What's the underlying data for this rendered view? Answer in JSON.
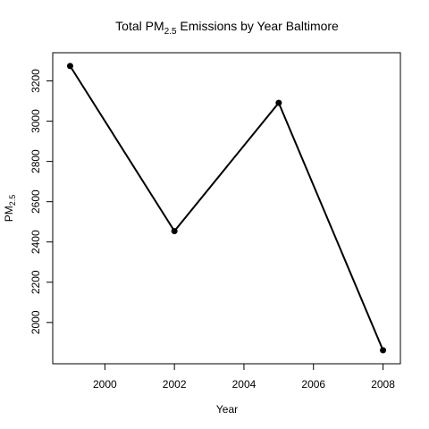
{
  "chart_data": {
    "type": "line",
    "title_prefix": "Total  PM",
    "title_sub": "2.5",
    "title_suffix": " Emissions by Year Baltimore",
    "xlabel": "Year",
    "ylabel_main": "PM",
    "ylabel_sub": "2.5",
    "x": [
      1999,
      2002,
      2005,
      2008
    ],
    "values": [
      3274,
      2454,
      3091,
      1862
    ],
    "xlim": [
      1998.5,
      2008.5
    ],
    "ylim": [
      1795,
      3340
    ],
    "x_ticks": [
      2000,
      2002,
      2004,
      2006,
      2008
    ],
    "y_ticks": [
      2000,
      2200,
      2400,
      2600,
      2800,
      3000,
      3200
    ],
    "grid": false,
    "legend": "none",
    "line_color": "#000000",
    "marker": "filled-circle"
  }
}
